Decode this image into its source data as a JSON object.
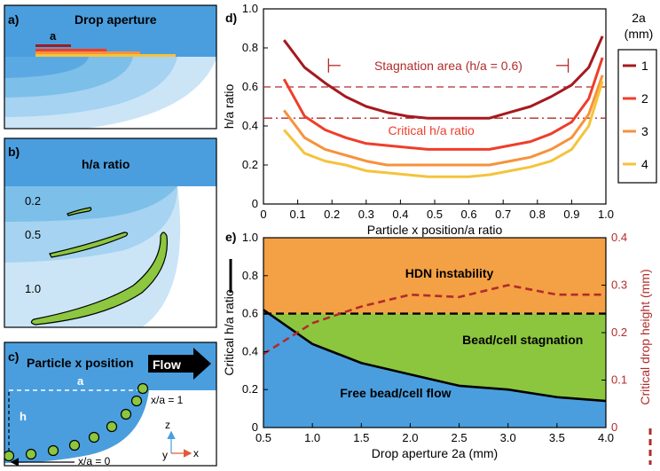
{
  "colors": {
    "blue": "#4a9ede",
    "light_blue_1": "#7cbfe9",
    "light_blue_2": "#a5d3f1",
    "light_blue_3": "#cbe5f6",
    "orange_fill": "#f4a044",
    "green_fill": "#8cc63f",
    "bead_green": "#8dc63f",
    "dark_red": "#a5191e",
    "red": "#ee3e2b",
    "orange": "#f7923b",
    "yellow": "#f5c33b",
    "dash_red": "#b22b2b"
  },
  "panel_a": {
    "label": "a)",
    "title": "Drop aperture",
    "a_label": "a"
  },
  "panel_b": {
    "label": "b)",
    "title": "h/a ratio",
    "levels": [
      "0.2",
      "0.5",
      "1.0"
    ]
  },
  "panel_c": {
    "label": "c)",
    "title": "Particle x position",
    "flow_label": "Flow",
    "a_label": "a",
    "h_label": "h",
    "x1_label": "x/a = 1",
    "x0_label": "x/a = 0",
    "axis_z": "z",
    "axis_y": "y",
    "axis_x": "x"
  },
  "chart_data": [
    {
      "panel_label": "d)",
      "type": "line",
      "xlabel": "Particle x position/a ratio",
      "ylabel": "h/a ratio",
      "xlim": [
        0,
        1
      ],
      "ylim": [
        0,
        1
      ],
      "xticks": [
        "0",
        "0.1",
        "0.2",
        "0.3",
        "0.4",
        "0.5",
        "0.6",
        "0.7",
        "0.8",
        "0.9",
        "1.0"
      ],
      "yticks": [
        "0",
        "0.2",
        "0.4",
        "0.6",
        "0.8",
        "1.0"
      ],
      "legend_title": "2a (mm)",
      "legend_title_line1": "2a",
      "legend_title_line2": "(mm)",
      "x": [
        0.06,
        0.12,
        0.18,
        0.24,
        0.3,
        0.36,
        0.42,
        0.48,
        0.54,
        0.6,
        0.66,
        0.72,
        0.78,
        0.84,
        0.9,
        0.95,
        0.99
      ],
      "series": [
        {
          "name": "1",
          "values": [
            0.84,
            0.7,
            0.62,
            0.55,
            0.5,
            0.47,
            0.45,
            0.44,
            0.44,
            0.44,
            0.44,
            0.47,
            0.5,
            0.55,
            0.61,
            0.7,
            0.86
          ]
        },
        {
          "name": "2",
          "values": [
            0.64,
            0.45,
            0.38,
            0.34,
            0.31,
            0.3,
            0.29,
            0.28,
            0.28,
            0.28,
            0.28,
            0.3,
            0.32,
            0.36,
            0.42,
            0.54,
            0.75
          ]
        },
        {
          "name": "3",
          "values": [
            0.48,
            0.34,
            0.28,
            0.25,
            0.22,
            0.2,
            0.2,
            0.2,
            0.2,
            0.2,
            0.2,
            0.22,
            0.24,
            0.28,
            0.34,
            0.46,
            0.66
          ]
        },
        {
          "name": "4",
          "values": [
            0.38,
            0.26,
            0.22,
            0.2,
            0.17,
            0.16,
            0.15,
            0.14,
            0.14,
            0.14,
            0.15,
            0.17,
            0.19,
            0.22,
            0.28,
            0.4,
            0.63
          ]
        }
      ],
      "stagnation_line": {
        "y": 0.6,
        "label": "Stagnation area (h/a = 0.6)",
        "x_from": 0.19,
        "x_to": 0.89
      },
      "critical_line": {
        "y": 0.44,
        "label": "Critical h/a ratio"
      }
    },
    {
      "panel_label": "e)",
      "type": "area",
      "xlabel": "Drop aperture 2a (mm)",
      "ylabel_left": "Critical h/a ratio",
      "ylabel_right": "Critical drop height (mm)",
      "xlim": [
        0.5,
        4.0
      ],
      "ylim_left": [
        0,
        1
      ],
      "ylim_right": [
        0,
        0.4
      ],
      "xticks": [
        "0.5",
        "1.0",
        "1.5",
        "2.0",
        "2.5",
        "3.0",
        "3.5",
        "4.0"
      ],
      "yticks_left": [
        "0",
        "0.2",
        "0.4",
        "0.6",
        "0.8",
        "1.0"
      ],
      "yticks_right": [
        "0",
        "0.1",
        "0.2",
        "0.3",
        "0.4"
      ],
      "critical_ratio": {
        "x": [
          0.5,
          1.0,
          1.5,
          2.0,
          2.5,
          3.0,
          3.5,
          4.0
        ],
        "values": [
          0.62,
          0.44,
          0.34,
          0.28,
          0.22,
          0.2,
          0.16,
          0.14
        ]
      },
      "stagnation_threshold": 0.6,
      "critical_height": {
        "x": [
          0.5,
          1.0,
          1.5,
          2.0,
          2.5,
          3.0,
          3.5,
          4.0
        ],
        "values": [
          0.155,
          0.22,
          0.255,
          0.28,
          0.275,
          0.3,
          0.28,
          0.28
        ]
      },
      "regions": [
        "HDN instability",
        "Bead/cell stagnation",
        "Free bead/cell flow"
      ]
    }
  ]
}
